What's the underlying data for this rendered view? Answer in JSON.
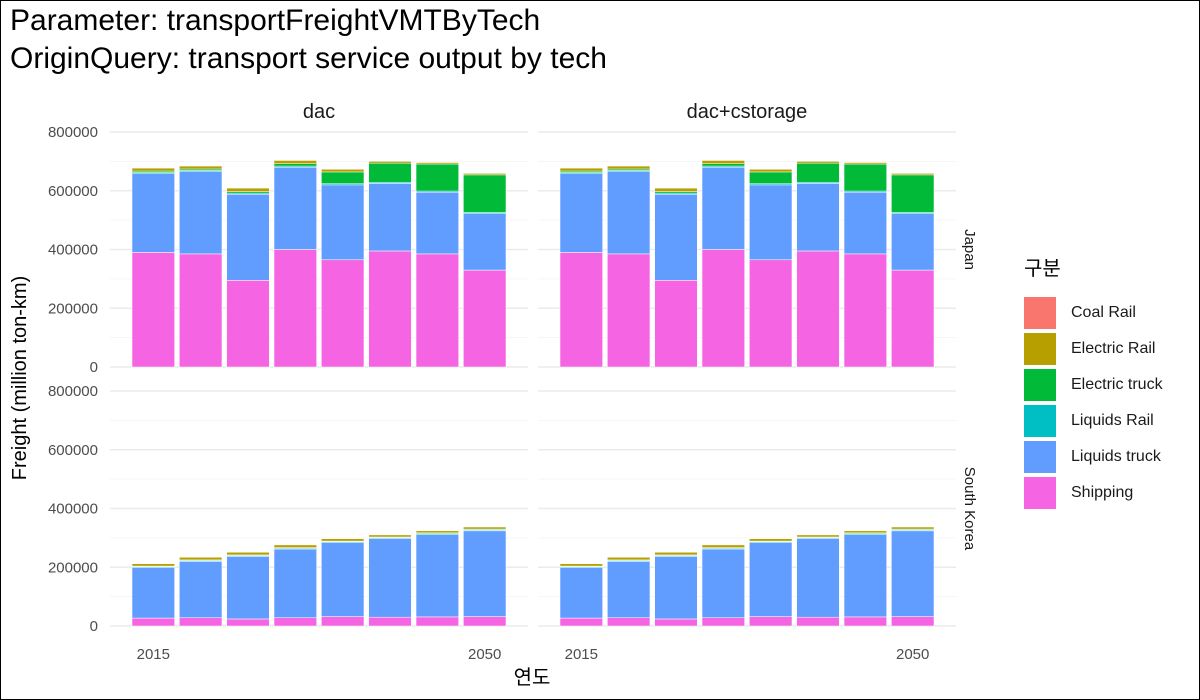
{
  "chart_data": {
    "type": "bar",
    "stacked": true,
    "title": "Parameter: transportFreightVMTByTech",
    "subtitle": "OriginQuery: transport service output by tech",
    "xlabel": "연도",
    "ylabel": "Freight (million ton-km)",
    "x": [
      2015,
      2020,
      2025,
      2030,
      2035,
      2040,
      2045,
      2050
    ],
    "x_tick_labels": [
      "2015",
      "2050"
    ],
    "x_tick_values": [
      2015,
      2050
    ],
    "ylim": [
      0,
      800000
    ],
    "y_ticks": [
      0,
      200000,
      400000,
      600000,
      800000
    ],
    "y_tick_labels": [
      "0",
      "200000",
      "400000",
      "600000",
      "800000"
    ],
    "grid": true,
    "legend": {
      "title": "구분",
      "position": "right",
      "entries": [
        {
          "name": "Coal Rail",
          "color": "#F8766D"
        },
        {
          "name": "Electric Rail",
          "color": "#B79F00"
        },
        {
          "name": "Electric truck",
          "color": "#00BA38"
        },
        {
          "name": "Liquids Rail",
          "color": "#00BFC4"
        },
        {
          "name": "Liquids truck",
          "color": "#619CFF"
        },
        {
          "name": "Shipping",
          "color": "#F564E3"
        }
      ]
    },
    "facet_columns": [
      "dac",
      "dac+cstorage"
    ],
    "facet_rows": [
      "Japan",
      "South Korea"
    ],
    "panels": [
      {
        "column": "dac",
        "row": "Japan",
        "series": [
          {
            "name": "Shipping",
            "values": [
              390000,
              385000,
              295000,
              400000,
              365000,
              395000,
              385000,
              330000
            ]
          },
          {
            "name": "Liquids truck",
            "values": [
              268000,
              280000,
              293000,
              280000,
              255000,
              230000,
              210000,
              192000
            ]
          },
          {
            "name": "Liquids Rail",
            "values": [
              4000,
              4000,
              4000,
              4000,
              4000,
              4000,
              4000,
              4000
            ]
          },
          {
            "name": "Electric truck",
            "values": [
              5000,
              5000,
              5000,
              8000,
              40000,
              65000,
              92000,
              128000
            ]
          },
          {
            "name": "Electric Rail",
            "values": [
              10000,
              10000,
              12000,
              11000,
              9000,
              6000,
              5000,
              5000
            ]
          },
          {
            "name": "Coal Rail",
            "values": [
              0,
              0,
              0,
              0,
              0,
              0,
              0,
              0
            ]
          }
        ]
      },
      {
        "column": "dac+cstorage",
        "row": "Japan",
        "series": [
          {
            "name": "Shipping",
            "values": [
              390000,
              385000,
              295000,
              400000,
              365000,
              395000,
              385000,
              330000
            ]
          },
          {
            "name": "Liquids truck",
            "values": [
              268000,
              280000,
              293000,
              280000,
              255000,
              230000,
              210000,
              192000
            ]
          },
          {
            "name": "Liquids Rail",
            "values": [
              4000,
              4000,
              4000,
              4000,
              4000,
              4000,
              4000,
              4000
            ]
          },
          {
            "name": "Electric truck",
            "values": [
              5000,
              5000,
              5000,
              8000,
              40000,
              65000,
              92000,
              128000
            ]
          },
          {
            "name": "Electric Rail",
            "values": [
              10000,
              10000,
              12000,
              11000,
              9000,
              6000,
              5000,
              5000
            ]
          },
          {
            "name": "Coal Rail",
            "values": [
              0,
              0,
              0,
              0,
              0,
              0,
              0,
              0
            ]
          }
        ]
      },
      {
        "column": "dac",
        "row": "South Korea",
        "series": [
          {
            "name": "Shipping",
            "values": [
              27000,
              28000,
              24000,
              28000,
              32000,
              30000,
              31000,
              32000
            ]
          },
          {
            "name": "Liquids truck",
            "values": [
              172000,
              192000,
              213000,
              234000,
              252000,
              268000,
              280000,
              292000
            ]
          },
          {
            "name": "Liquids Rail",
            "values": [
              3000,
              3000,
              3000,
              3000,
              3000,
              3000,
              3000,
              3000
            ]
          },
          {
            "name": "Electric truck",
            "values": [
              2000,
              2000,
              2000,
              2000,
              2000,
              2000,
              3000,
              3000
            ]
          },
          {
            "name": "Electric Rail",
            "values": [
              8000,
              9000,
              9000,
              9000,
              8000,
              7000,
              7000,
              7000
            ]
          },
          {
            "name": "Coal Rail",
            "values": [
              0,
              0,
              0,
              0,
              0,
              0,
              0,
              0
            ]
          }
        ]
      },
      {
        "column": "dac+cstorage",
        "row": "South Korea",
        "series": [
          {
            "name": "Shipping",
            "values": [
              27000,
              28000,
              24000,
              28000,
              32000,
              30000,
              31000,
              32000
            ]
          },
          {
            "name": "Liquids truck",
            "values": [
              172000,
              192000,
              213000,
              234000,
              252000,
              268000,
              280000,
              292000
            ]
          },
          {
            "name": "Liquids Rail",
            "values": [
              3000,
              3000,
              3000,
              3000,
              3000,
              3000,
              3000,
              3000
            ]
          },
          {
            "name": "Electric truck",
            "values": [
              2000,
              2000,
              2000,
              2000,
              2000,
              2000,
              3000,
              3000
            ]
          },
          {
            "name": "Electric Rail",
            "values": [
              8000,
              9000,
              9000,
              9000,
              8000,
              7000,
              7000,
              7000
            ]
          },
          {
            "name": "Coal Rail",
            "values": [
              0,
              0,
              0,
              0,
              0,
              0,
              0,
              0
            ]
          }
        ]
      }
    ]
  }
}
